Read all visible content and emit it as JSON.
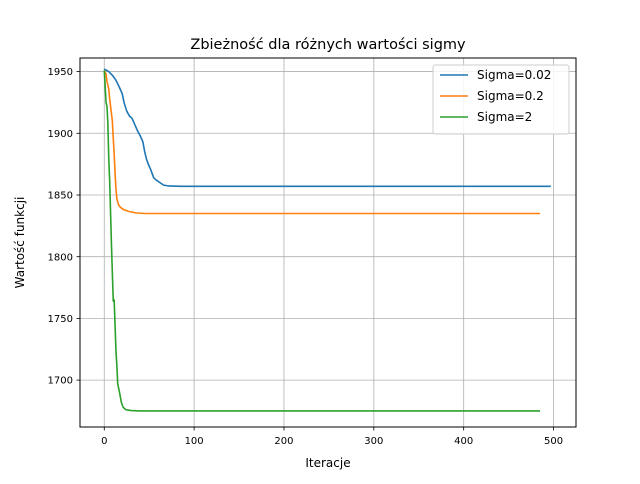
{
  "chart_data": {
    "type": "line",
    "title": "Zbieżność dla różnych wartości sigmy",
    "xlabel": "Iteracje",
    "ylabel": "Wartość funkcji",
    "xlim": [
      -27,
      525
    ],
    "ylim": [
      1662,
      1961
    ],
    "xticks": [
      0,
      100,
      200,
      300,
      400,
      500
    ],
    "yticks": [
      1700,
      1750,
      1800,
      1850,
      1900,
      1950
    ],
    "grid": true,
    "legend_position": "top-right",
    "series": [
      {
        "name": "Sigma=0.02",
        "color": "#1f77b4",
        "points": [
          [
            0,
            1952
          ],
          [
            5,
            1950
          ],
          [
            9,
            1947
          ],
          [
            13,
            1943
          ],
          [
            17,
            1937
          ],
          [
            20,
            1932
          ],
          [
            22,
            1925
          ],
          [
            25,
            1918
          ],
          [
            28,
            1914
          ],
          [
            31,
            1912
          ],
          [
            34,
            1907
          ],
          [
            37,
            1902
          ],
          [
            40,
            1898
          ],
          [
            43,
            1893
          ],
          [
            45,
            1885
          ],
          [
            47,
            1879
          ],
          [
            49,
            1875
          ],
          [
            52,
            1870
          ],
          [
            55,
            1864
          ],
          [
            58,
            1862
          ],
          [
            62,
            1860
          ],
          [
            66,
            1858
          ],
          [
            72,
            1857.3
          ],
          [
            85,
            1857
          ],
          [
            100,
            1857
          ],
          [
            200,
            1857
          ],
          [
            300,
            1857
          ],
          [
            400,
            1857
          ],
          [
            497,
            1857
          ]
        ]
      },
      {
        "name": "Sigma=0.2",
        "color": "#ff7f0e",
        "points": [
          [
            0,
            1951
          ],
          [
            2,
            1948
          ],
          [
            3,
            1942
          ],
          [
            5,
            1936
          ],
          [
            6,
            1928
          ],
          [
            7,
            1922
          ],
          [
            8,
            1916
          ],
          [
            9,
            1910
          ],
          [
            10,
            1896
          ],
          [
            11,
            1884
          ],
          [
            12,
            1868
          ],
          [
            13,
            1855
          ],
          [
            14,
            1847
          ],
          [
            16,
            1842
          ],
          [
            18,
            1840
          ],
          [
            22,
            1838
          ],
          [
            28,
            1836.5
          ],
          [
            35,
            1835.5
          ],
          [
            45,
            1835
          ],
          [
            60,
            1835
          ],
          [
            100,
            1835
          ],
          [
            200,
            1835
          ],
          [
            300,
            1835
          ],
          [
            400,
            1835
          ],
          [
            485,
            1835
          ]
        ]
      },
      {
        "name": "Sigma=2",
        "color": "#2ca02c",
        "points": [
          [
            0,
            1951
          ],
          [
            1,
            1938
          ],
          [
            2,
            1925
          ],
          [
            3,
            1922
          ],
          [
            4,
            1908
          ],
          [
            5,
            1880
          ],
          [
            6,
            1862
          ],
          [
            7,
            1836
          ],
          [
            8,
            1810
          ],
          [
            9,
            1787
          ],
          [
            10,
            1764
          ],
          [
            11,
            1765
          ],
          [
            12,
            1745
          ],
          [
            13,
            1724
          ],
          [
            14,
            1712
          ],
          [
            15,
            1697
          ],
          [
            17,
            1690
          ],
          [
            19,
            1682
          ],
          [
            21,
            1678
          ],
          [
            24,
            1676
          ],
          [
            30,
            1675.3
          ],
          [
            40,
            1675
          ],
          [
            60,
            1675
          ],
          [
            100,
            1675
          ],
          [
            200,
            1675
          ],
          [
            300,
            1675
          ],
          [
            400,
            1675
          ],
          [
            485,
            1675
          ]
        ]
      }
    ]
  }
}
